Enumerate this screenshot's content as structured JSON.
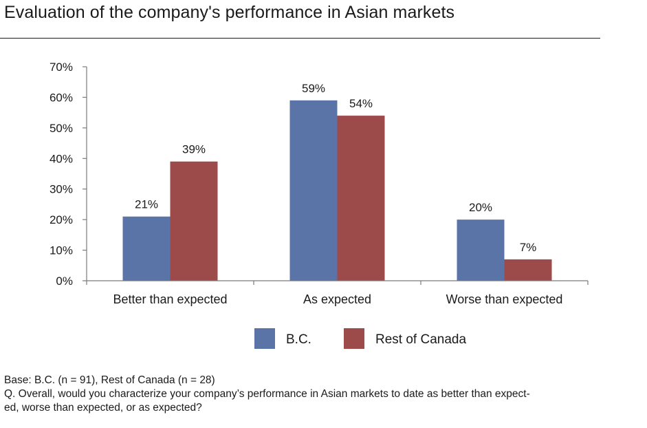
{
  "title": "Evaluation of the company's performance in Asian markets",
  "chart_data": {
    "type": "bar",
    "categories": [
      "Better than expected",
      "As expected",
      "Worse than expected"
    ],
    "series": [
      {
        "name": "B.C.",
        "values": [
          21,
          59,
          20
        ],
        "labels": [
          "21%",
          "59%",
          "20%"
        ],
        "color": "#5b74a8"
      },
      {
        "name": "Rest of Canada",
        "values": [
          39,
          54,
          7
        ],
        "labels": [
          "39%",
          "54%",
          "7%"
        ],
        "color": "#9c4b4a"
      }
    ],
    "ylim": [
      0,
      70
    ],
    "yticks": [
      0,
      10,
      20,
      30,
      40,
      50,
      60,
      70
    ],
    "ytick_labels": [
      "0%",
      "10%",
      "20%",
      "30%",
      "40%",
      "50%",
      "60%",
      "70%"
    ],
    "legend_position": "bottom",
    "grid": false
  },
  "footnote": {
    "base": "Base:  B.C.  (n = 91), Rest of Canada (n = 28)",
    "question_line1": "Q. Overall, would you characterize your company’s performance in Asian markets to date as better than expect-",
    "question_line2": "ed, worse than expected, or as expected?"
  }
}
